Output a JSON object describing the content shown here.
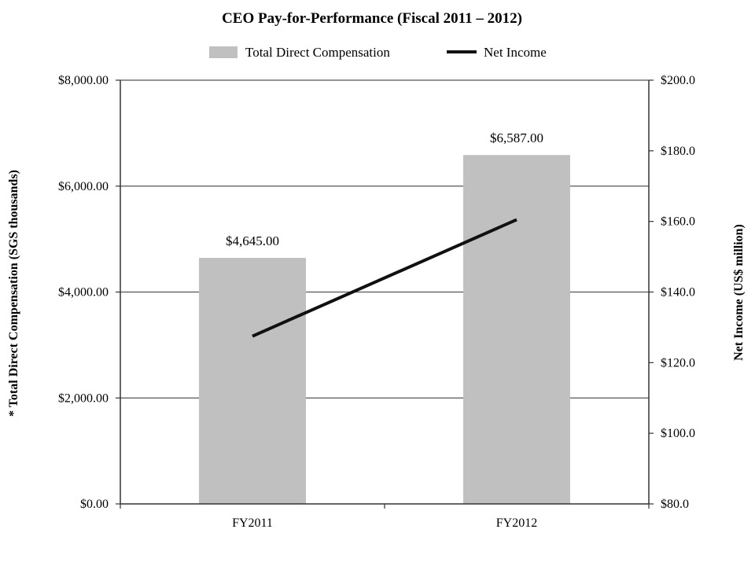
{
  "chart_data": {
    "type": "bar",
    "title": "CEO Pay-for-Performance (Fiscal 2011 – 2012)",
    "categories": [
      "FY2011",
      "FY2012"
    ],
    "series": [
      {
        "name": "Total Direct Compensation",
        "kind": "bar",
        "axis": "left",
        "values": [
          4645,
          6587
        ],
        "labels": [
          "$4,645.00",
          "$6,587.00"
        ],
        "color": "#c0c0c0"
      },
      {
        "name": "Net Income",
        "kind": "line",
        "axis": "right",
        "values": [
          127.5,
          160.5
        ],
        "color": "#111111"
      }
    ],
    "ylabel_left": "* Total Direct Compensation (SGS thousands)",
    "ylabel_right": "Net Income (US$ million)",
    "ylim_left": [
      0,
      8000
    ],
    "ylim_right": [
      80,
      200
    ],
    "yticks_left": [
      "$0.00",
      "$2,000.00",
      "$4,000.00",
      "$6,000.00",
      "$8,000.00"
    ],
    "yticks_right": [
      "$80.0",
      "$100.0",
      "$120.0",
      "$140.0",
      "$160.0",
      "$180.0",
      "$200.0"
    ],
    "legend_position": "top",
    "grid": "horizontal"
  }
}
